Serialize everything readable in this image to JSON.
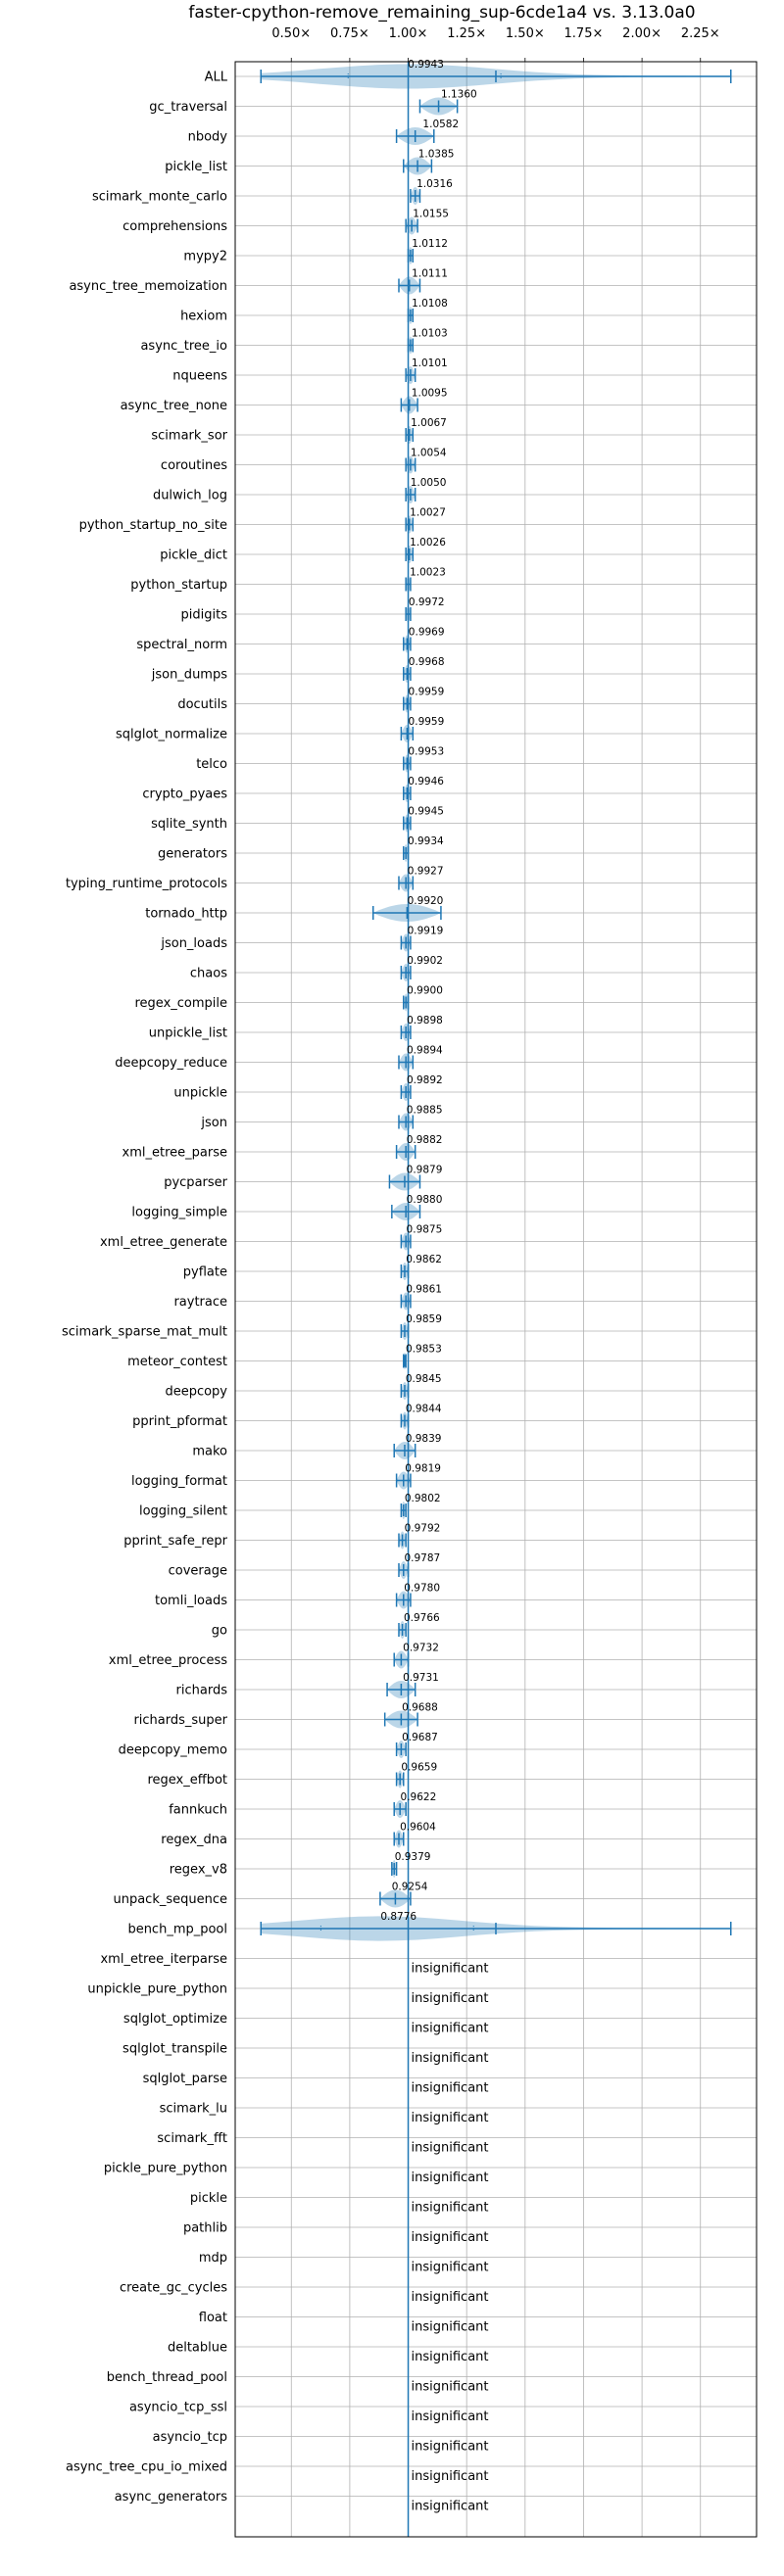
{
  "chart_data": {
    "type": "violin",
    "title": "faster-cpython-remove_remaining_sup-6cde1a4 vs. 3.13.0a0",
    "orientation": "horizontal",
    "x_ticks": [
      "0.50×",
      "0.75×",
      "1.00×",
      "1.25×",
      "1.50×",
      "1.75×",
      "2.00×",
      "2.25×"
    ],
    "x_tick_values": [
      0.5,
      0.75,
      1.0,
      1.25,
      1.5,
      1.75,
      2.0,
      2.25
    ],
    "xlim": [
      0.26,
      2.49
    ],
    "reference_line": 1.0,
    "grid": true,
    "colors": {
      "violin": "#1f77b4",
      "reference": "#1f77b4",
      "grid": "#b0b0b0"
    },
    "insignificant_label": "insignificant",
    "benchmarks": [
      {
        "name": "ALL",
        "value": 0.9943,
        "label": "0.9943",
        "min": 0.37,
        "max": 2.38
      },
      {
        "name": "gc_traversal",
        "value": 1.136,
        "label": "1.1360",
        "min": 1.05,
        "max": 1.21
      },
      {
        "name": "nbody",
        "value": 1.0582,
        "label": "1.0582",
        "min": 0.95,
        "max": 1.11
      },
      {
        "name": "pickle_list",
        "value": 1.0385,
        "label": "1.0385",
        "min": 0.98,
        "max": 1.1
      },
      {
        "name": "scimark_monte_carlo",
        "value": 1.0316,
        "label": "1.0316",
        "min": 1.01,
        "max": 1.05
      },
      {
        "name": "comprehensions",
        "value": 1.0155,
        "label": "1.0155",
        "min": 0.99,
        "max": 1.04
      },
      {
        "name": "mypy2",
        "value": 1.0112,
        "label": "1.0112",
        "min": 1.0,
        "max": 1.02
      },
      {
        "name": "async_tree_memoization",
        "value": 1.0111,
        "label": "1.0111",
        "min": 0.96,
        "max": 1.05
      },
      {
        "name": "hexiom",
        "value": 1.0108,
        "label": "1.0108",
        "min": 1.0,
        "max": 1.02
      },
      {
        "name": "async_tree_io",
        "value": 1.0103,
        "label": "1.0103",
        "min": 1.0,
        "max": 1.02
      },
      {
        "name": "nqueens",
        "value": 1.0101,
        "label": "1.0101",
        "min": 0.99,
        "max": 1.03
      },
      {
        "name": "async_tree_none",
        "value": 1.0095,
        "label": "1.0095",
        "min": 0.97,
        "max": 1.04
      },
      {
        "name": "scimark_sor",
        "value": 1.0067,
        "label": "1.0067",
        "min": 0.99,
        "max": 1.02
      },
      {
        "name": "coroutines",
        "value": 1.0054,
        "label": "1.0054",
        "min": 0.99,
        "max": 1.03
      },
      {
        "name": "dulwich_log",
        "value": 1.005,
        "label": "1.0050",
        "min": 0.99,
        "max": 1.03
      },
      {
        "name": "python_startup_no_site",
        "value": 1.0027,
        "label": "1.0027",
        "min": 0.99,
        "max": 1.02
      },
      {
        "name": "pickle_dict",
        "value": 1.0026,
        "label": "1.0026",
        "min": 0.99,
        "max": 1.02
      },
      {
        "name": "python_startup",
        "value": 1.0023,
        "label": "1.0023",
        "min": 0.99,
        "max": 1.01
      },
      {
        "name": "pidigits",
        "value": 0.9972,
        "label": "0.9972",
        "min": 0.99,
        "max": 1.01
      },
      {
        "name": "spectral_norm",
        "value": 0.9969,
        "label": "0.9969",
        "min": 0.98,
        "max": 1.01
      },
      {
        "name": "json_dumps",
        "value": 0.9968,
        "label": "0.9968",
        "min": 0.98,
        "max": 1.01
      },
      {
        "name": "docutils",
        "value": 0.9959,
        "label": "0.9959",
        "min": 0.98,
        "max": 1.01
      },
      {
        "name": "sqlglot_normalize",
        "value": 0.9959,
        "label": "0.9959",
        "min": 0.97,
        "max": 1.02
      },
      {
        "name": "telco",
        "value": 0.9953,
        "label": "0.9953",
        "min": 0.98,
        "max": 1.01
      },
      {
        "name": "crypto_pyaes",
        "value": 0.9946,
        "label": "0.9946",
        "min": 0.98,
        "max": 1.01
      },
      {
        "name": "sqlite_synth",
        "value": 0.9945,
        "label": "0.9945",
        "min": 0.98,
        "max": 1.01
      },
      {
        "name": "generators",
        "value": 0.9934,
        "label": "0.9934",
        "min": 0.98,
        "max": 1.0
      },
      {
        "name": "typing_runtime_protocols",
        "value": 0.9927,
        "label": "0.9927",
        "min": 0.96,
        "max": 1.02
      },
      {
        "name": "tornado_http",
        "value": 0.992,
        "label": "0.9920",
        "min": 0.85,
        "max": 1.14
      },
      {
        "name": "json_loads",
        "value": 0.9919,
        "label": "0.9919",
        "min": 0.97,
        "max": 1.01
      },
      {
        "name": "chaos",
        "value": 0.9902,
        "label": "0.9902",
        "min": 0.97,
        "max": 1.01
      },
      {
        "name": "regex_compile",
        "value": 0.99,
        "label": "0.9900",
        "min": 0.98,
        "max": 1.0
      },
      {
        "name": "unpickle_list",
        "value": 0.9898,
        "label": "0.9898",
        "min": 0.97,
        "max": 1.01
      },
      {
        "name": "deepcopy_reduce",
        "value": 0.9894,
        "label": "0.9894",
        "min": 0.96,
        "max": 1.02
      },
      {
        "name": "unpickle",
        "value": 0.9892,
        "label": "0.9892",
        "min": 0.97,
        "max": 1.01
      },
      {
        "name": "json",
        "value": 0.9885,
        "label": "0.9885",
        "min": 0.96,
        "max": 1.02
      },
      {
        "name": "xml_etree_parse",
        "value": 0.9882,
        "label": "0.9882",
        "min": 0.95,
        "max": 1.03
      },
      {
        "name": "pycparser",
        "value": 0.9879,
        "label": "0.9879",
        "min": 0.92,
        "max": 1.05
      },
      {
        "name": "logging_simple",
        "value": 0.988,
        "label": "0.9880",
        "min": 0.93,
        "max": 1.05
      },
      {
        "name": "xml_etree_generate",
        "value": 0.9875,
        "label": "0.9875",
        "min": 0.97,
        "max": 1.01
      },
      {
        "name": "pyflate",
        "value": 0.9862,
        "label": "0.9862",
        "min": 0.97,
        "max": 1.0
      },
      {
        "name": "raytrace",
        "value": 0.9861,
        "label": "0.9861",
        "min": 0.97,
        "max": 1.01
      },
      {
        "name": "scimark_sparse_mat_mult",
        "value": 0.9859,
        "label": "0.9859",
        "min": 0.97,
        "max": 1.0
      },
      {
        "name": "meteor_contest",
        "value": 0.9853,
        "label": "0.9853",
        "min": 0.98,
        "max": 0.99
      },
      {
        "name": "deepcopy",
        "value": 0.9845,
        "label": "0.9845",
        "min": 0.97,
        "max": 1.0
      },
      {
        "name": "pprint_pformat",
        "value": 0.9844,
        "label": "0.9844",
        "min": 0.97,
        "max": 1.0
      },
      {
        "name": "mako",
        "value": 0.9839,
        "label": "0.9839",
        "min": 0.94,
        "max": 1.03
      },
      {
        "name": "logging_format",
        "value": 0.9819,
        "label": "0.9819",
        "min": 0.95,
        "max": 1.01
      },
      {
        "name": "logging_silent",
        "value": 0.9802,
        "label": "0.9802",
        "min": 0.97,
        "max": 0.99
      },
      {
        "name": "pprint_safe_repr",
        "value": 0.9792,
        "label": "0.9792",
        "min": 0.96,
        "max": 0.99
      },
      {
        "name": "coverage",
        "value": 0.9787,
        "label": "0.9787",
        "min": 0.96,
        "max": 1.0
      },
      {
        "name": "tomli_loads",
        "value": 0.978,
        "label": "0.9780",
        "min": 0.95,
        "max": 1.01
      },
      {
        "name": "go",
        "value": 0.9766,
        "label": "0.9766",
        "min": 0.96,
        "max": 0.99
      },
      {
        "name": "xml_etree_process",
        "value": 0.9732,
        "label": "0.9732",
        "min": 0.94,
        "max": 1.0
      },
      {
        "name": "richards",
        "value": 0.9731,
        "label": "0.9731",
        "min": 0.91,
        "max": 1.03
      },
      {
        "name": "richards_super",
        "value": 0.9688,
        "label": "0.9688",
        "min": 0.9,
        "max": 1.04
      },
      {
        "name": "deepcopy_memo",
        "value": 0.9687,
        "label": "0.9687",
        "min": 0.95,
        "max": 0.99
      },
      {
        "name": "regex_effbot",
        "value": 0.9659,
        "label": "0.9659",
        "min": 0.95,
        "max": 0.98
      },
      {
        "name": "fannkuch",
        "value": 0.9622,
        "label": "0.9622",
        "min": 0.94,
        "max": 0.99
      },
      {
        "name": "regex_dna",
        "value": 0.9604,
        "label": "0.9604",
        "min": 0.94,
        "max": 0.98
      },
      {
        "name": "regex_v8",
        "value": 0.9379,
        "label": "0.9379",
        "min": 0.93,
        "max": 0.95
      },
      {
        "name": "unpack_sequence",
        "value": 0.9254,
        "label": "0.9254",
        "min": 0.88,
        "max": 1.01
      },
      {
        "name": "bench_mp_pool",
        "value": 0.8776,
        "label": "0.8776",
        "min": 0.37,
        "max": 2.38
      },
      {
        "name": "xml_etree_iterparse",
        "insignificant": true
      },
      {
        "name": "unpickle_pure_python",
        "insignificant": true
      },
      {
        "name": "sqlglot_optimize",
        "insignificant": true
      },
      {
        "name": "sqlglot_transpile",
        "insignificant": true
      },
      {
        "name": "sqlglot_parse",
        "insignificant": true
      },
      {
        "name": "scimark_lu",
        "insignificant": true
      },
      {
        "name": "scimark_fft",
        "insignificant": true
      },
      {
        "name": "pickle_pure_python",
        "insignificant": true
      },
      {
        "name": "pickle",
        "insignificant": true
      },
      {
        "name": "pathlib",
        "insignificant": true
      },
      {
        "name": "mdp",
        "insignificant": true
      },
      {
        "name": "create_gc_cycles",
        "insignificant": true
      },
      {
        "name": "float",
        "insignificant": true
      },
      {
        "name": "deltablue",
        "insignificant": true
      },
      {
        "name": "bench_thread_pool",
        "insignificant": true
      },
      {
        "name": "asyncio_tcp_ssl",
        "insignificant": true
      },
      {
        "name": "asyncio_tcp",
        "insignificant": true
      },
      {
        "name": "async_tree_cpu_io_mixed",
        "insignificant": true
      },
      {
        "name": "async_generators",
        "insignificant": true
      }
    ]
  }
}
